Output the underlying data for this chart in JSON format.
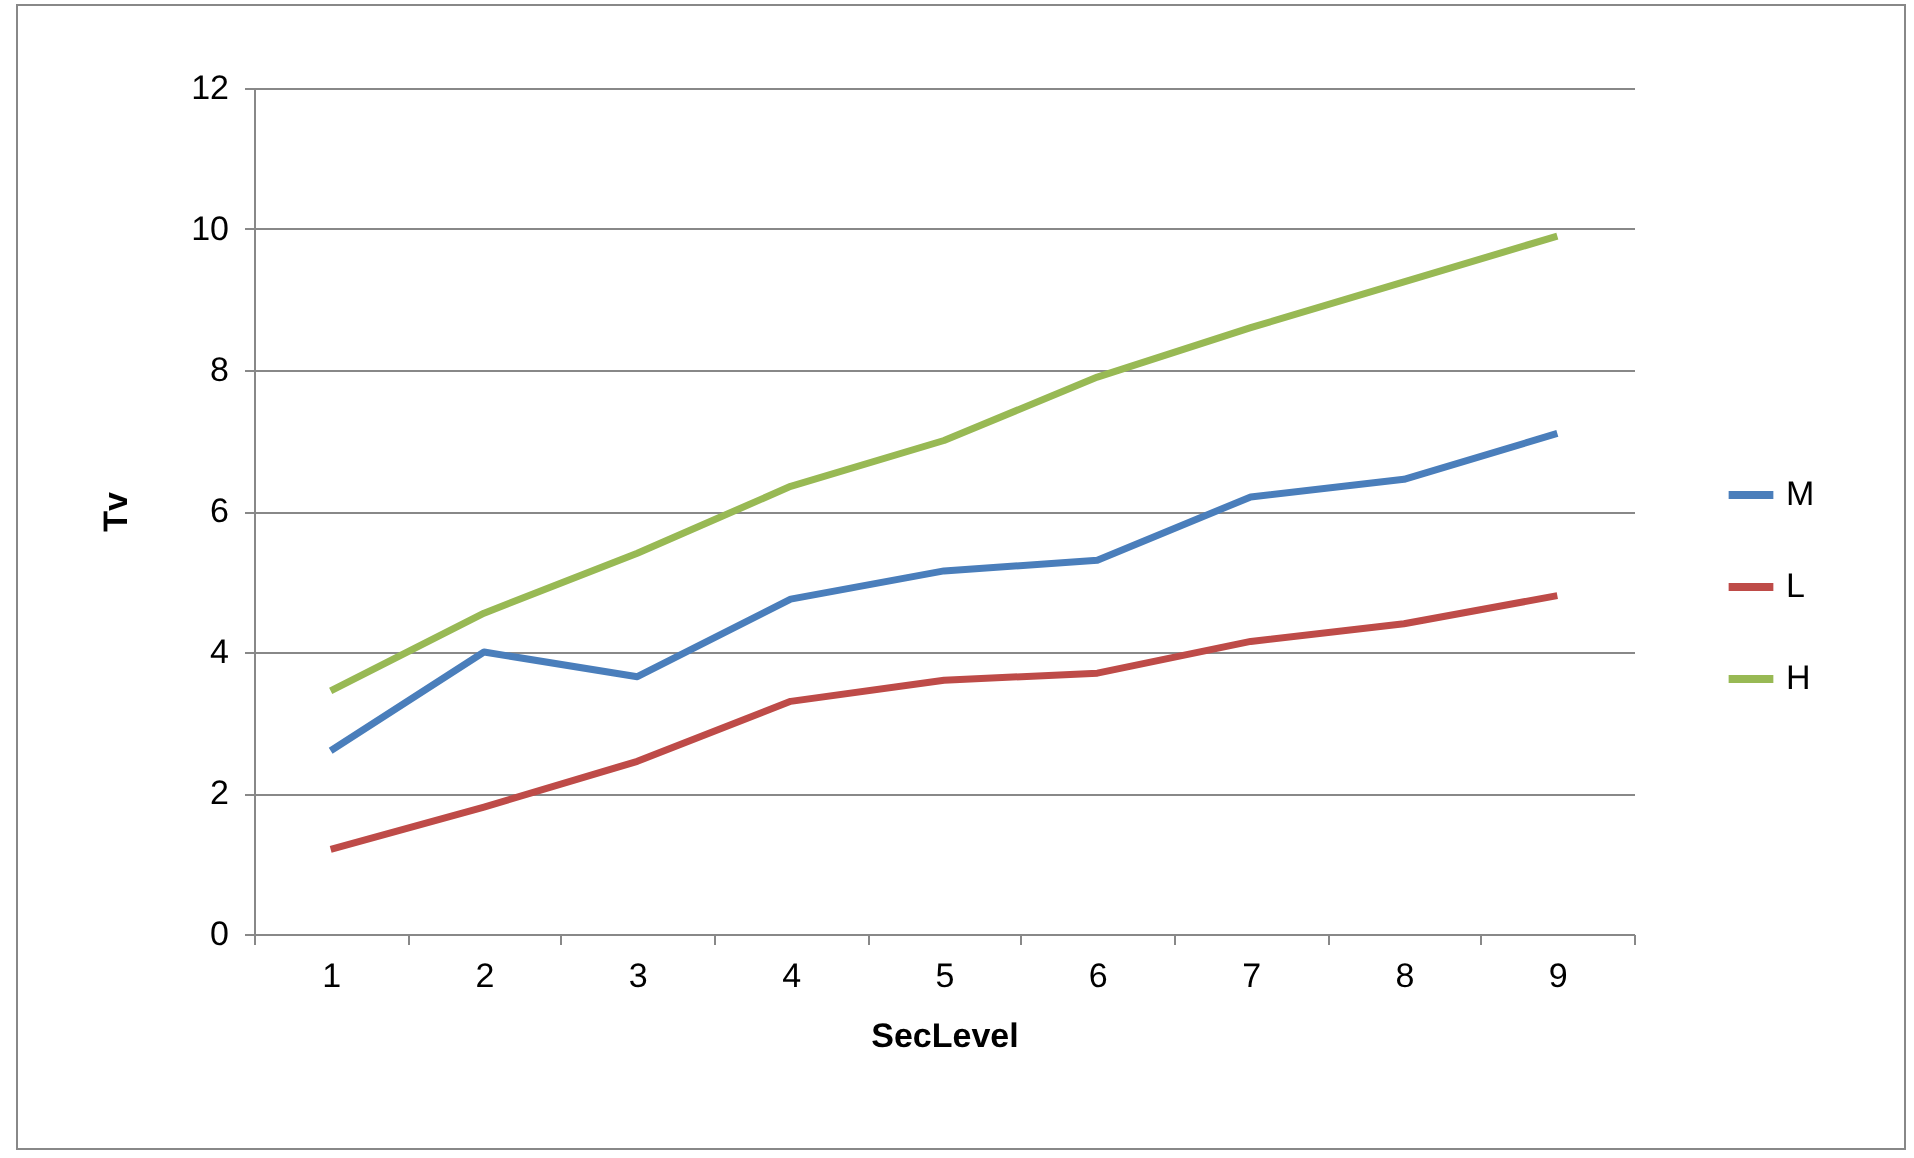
{
  "chart_data": {
    "type": "line",
    "xlabel": "SecLevel",
    "ylabel": "Tv",
    "categories": [
      "1",
      "2",
      "3",
      "4",
      "5",
      "6",
      "7",
      "8",
      "9"
    ],
    "series": [
      {
        "name": "M",
        "color": "#4a7ebb",
        "values": [
          2.6,
          4.0,
          3.65,
          4.75,
          5.15,
          5.3,
          6.2,
          6.45,
          7.1
        ]
      },
      {
        "name": "L",
        "color": "#be4b48",
        "values": [
          1.2,
          1.8,
          2.45,
          3.3,
          3.6,
          3.7,
          4.15,
          4.4,
          4.8
        ]
      },
      {
        "name": "H",
        "color": "#98b954",
        "values": [
          3.45,
          4.55,
          5.4,
          6.35,
          7.0,
          7.9,
          8.6,
          9.25,
          9.9
        ]
      }
    ],
    "ylim": [
      0,
      12
    ],
    "yticks": [
      0,
      2,
      4,
      6,
      8,
      10,
      12
    ],
    "grid": "y",
    "legend": "right",
    "marker": "none",
    "line_style": "solid"
  }
}
